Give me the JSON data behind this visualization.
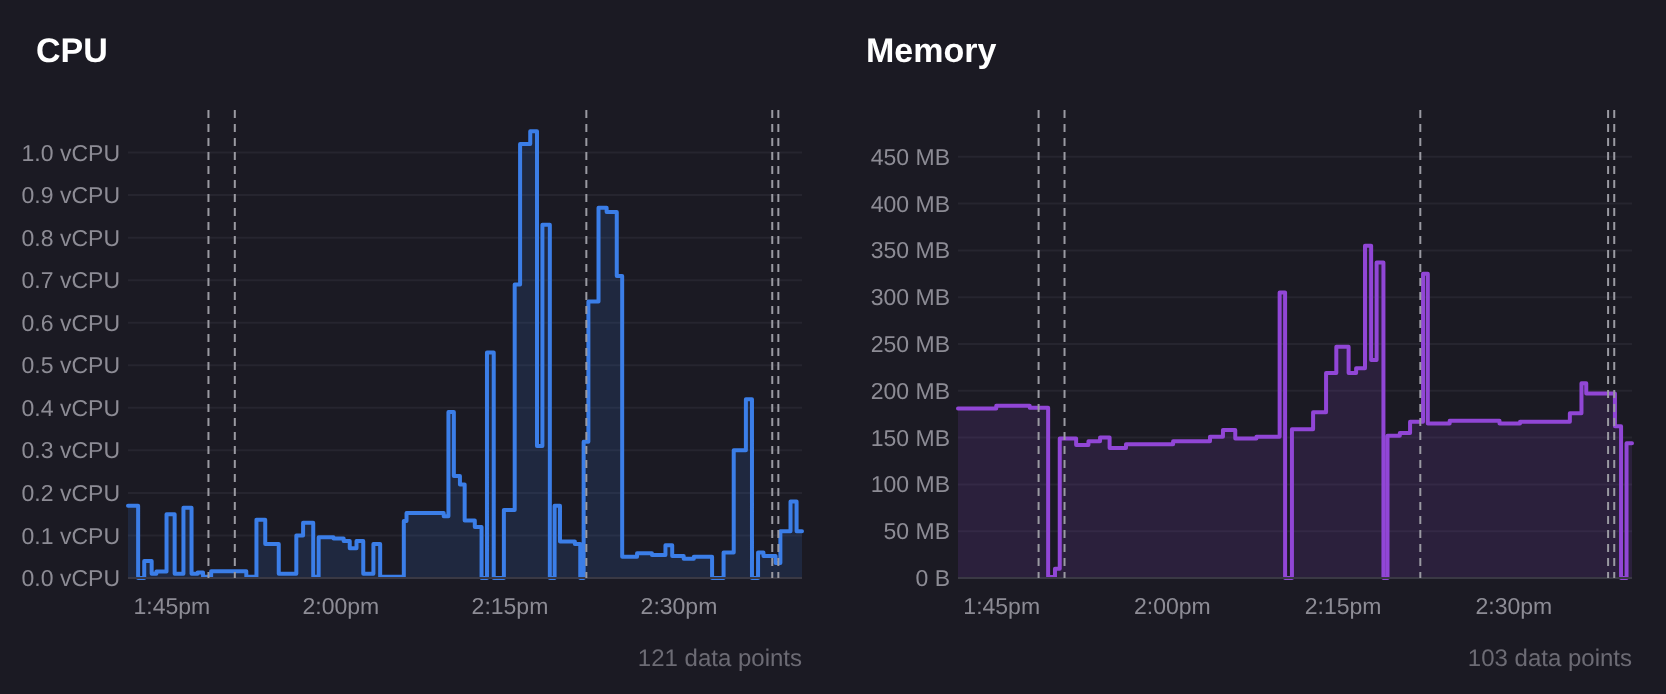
{
  "chart_data": [
    {
      "type": "step",
      "title": "CPU",
      "color": "#3b7ee8",
      "x": [
        13.685,
        13.7,
        13.709,
        13.72,
        13.727,
        13.742,
        13.754,
        13.767,
        13.779,
        13.788,
        13.796,
        13.808,
        13.86,
        13.875,
        13.888,
        13.908,
        13.934,
        13.944,
        13.959,
        13.967,
        13.989,
        14.004,
        14.013,
        14.023,
        14.033,
        14.048,
        14.058,
        14.093,
        14.097,
        14.152,
        14.159,
        14.167,
        14.176,
        14.183,
        14.198,
        14.208,
        14.216,
        14.226,
        14.241,
        14.257,
        14.265,
        14.28,
        14.29,
        14.298,
        14.309,
        14.316,
        14.324,
        14.346,
        14.354,
        14.359,
        14.366,
        14.381,
        14.393,
        14.408,
        14.416,
        14.438,
        14.46,
        14.48,
        14.49,
        14.507,
        14.522,
        14.549,
        14.566,
        14.581,
        14.599,
        14.608,
        14.617,
        14.625,
        14.643,
        14.65,
        14.665,
        14.674,
        14.682
      ],
      "values": [
        0.17,
        0,
        0.04,
        0.01,
        0.015,
        0.15,
        0.01,
        0.165,
        0.01,
        0.013,
        0.003,
        0.016,
        0.003,
        0.137,
        0.08,
        0.01,
        0.1,
        0.13,
        0.003,
        0.096,
        0.093,
        0.087,
        0.07,
        0.087,
        0.01,
        0.08,
        0.003,
        0.134,
        0.153,
        0.145,
        0.39,
        0.24,
        0.22,
        0.135,
        0.12,
        0,
        0.53,
        0,
        0.16,
        0.69,
        1.02,
        1.05,
        0.31,
        0.83,
        0,
        0.17,
        0.086,
        0.08,
        0,
        0.32,
        0.65,
        0.87,
        0.86,
        0.71,
        0.05,
        0.058,
        0.054,
        0.077,
        0.052,
        0.045,
        0.05,
        0,
        0.06,
        0.3,
        0.42,
        0,
        0.06,
        0.052,
        0.035,
        0.11,
        0.18,
        0.11,
        0.11
      ],
      "xlim": [
        13.685,
        14.682
      ],
      "ylim": [
        0,
        1.1
      ],
      "xticks": [
        {
          "value": 13.75,
          "label": "1:45pm"
        },
        {
          "value": 14.0,
          "label": "2:00pm"
        },
        {
          "value": 14.25,
          "label": "2:15pm"
        },
        {
          "value": 14.5,
          "label": "2:30pm"
        }
      ],
      "yticks": [
        {
          "value": 0,
          "label": "0.0 vCPU"
        },
        {
          "value": 0.1,
          "label": "0.1 vCPU"
        },
        {
          "value": 0.2,
          "label": "0.2 vCPU"
        },
        {
          "value": 0.3,
          "label": "0.3 vCPU"
        },
        {
          "value": 0.4,
          "label": "0.4 vCPU"
        },
        {
          "value": 0.5,
          "label": "0.5 vCPU"
        },
        {
          "value": 0.6,
          "label": "0.6 vCPU"
        },
        {
          "value": 0.7,
          "label": "0.7 vCPU"
        },
        {
          "value": 0.8,
          "label": "0.8 vCPU"
        },
        {
          "value": 0.9,
          "label": "0.9 vCPU"
        },
        {
          "value": 1.0,
          "label": "1.0 vCPU"
        }
      ],
      "grid": "y",
      "ref_lines": [
        {
          "axis": "x",
          "value": 13.804,
          "color": "#9a9aa2",
          "line_style": "dashed"
        },
        {
          "axis": "x",
          "value": 13.843,
          "color": "#9a9aa2",
          "line_style": "dashed"
        },
        {
          "axis": "x",
          "value": 14.363,
          "color": "#9a9aa2",
          "line_style": "dashed"
        },
        {
          "axis": "x",
          "value": 14.638,
          "color": "#9a9aa2",
          "line_style": "dashed"
        },
        {
          "axis": "x",
          "value": 14.647,
          "color": "#9a9aa2",
          "line_style": "dashed"
        }
      ],
      "annotations": [
        "121 data points"
      ]
    },
    {
      "type": "step",
      "title": "Memory",
      "color": "#9146d6",
      "x": [
        13.686,
        13.742,
        13.791,
        13.818,
        13.828,
        13.835,
        13.859,
        13.877,
        13.894,
        13.908,
        13.932,
        14.001,
        14.055,
        14.074,
        14.092,
        14.123,
        14.157,
        14.165,
        14.175,
        14.206,
        14.225,
        14.24,
        14.258,
        14.269,
        14.282,
        14.291,
        14.299,
        14.309,
        14.315,
        14.333,
        14.348,
        14.367,
        14.374,
        14.406,
        14.479,
        14.509,
        14.582,
        14.599,
        14.606,
        14.648,
        14.657,
        14.665,
        14.673
      ],
      "values": [
        181,
        184,
        182,
        1,
        10,
        149,
        142,
        146,
        150,
        139,
        143,
        146,
        151,
        158,
        149,
        151,
        305,
        0,
        159,
        177,
        219,
        247,
        219,
        224,
        355,
        233,
        337,
        0,
        152,
        155,
        167,
        325,
        165,
        168,
        165,
        167,
        176,
        208,
        197,
        162,
        0,
        144,
        144
      ],
      "xlim": [
        13.686,
        14.673
      ],
      "ylim": [
        0,
        500
      ],
      "xticks": [
        {
          "value": 13.75,
          "label": "1:45pm"
        },
        {
          "value": 14.0,
          "label": "2:00pm"
        },
        {
          "value": 14.25,
          "label": "2:15pm"
        },
        {
          "value": 14.5,
          "label": "2:30pm"
        }
      ],
      "yticks": [
        {
          "value": 0,
          "label": "0 B"
        },
        {
          "value": 50,
          "label": "50 MB"
        },
        {
          "value": 100,
          "label": "100 MB"
        },
        {
          "value": 150,
          "label": "150 MB"
        },
        {
          "value": 200,
          "label": "200 MB"
        },
        {
          "value": 250,
          "label": "250 MB"
        },
        {
          "value": 300,
          "label": "300 MB"
        },
        {
          "value": 350,
          "label": "350 MB"
        },
        {
          "value": 400,
          "label": "400 MB"
        },
        {
          "value": 450,
          "label": "450 MB"
        }
      ],
      "grid": "y",
      "ref_lines": [
        {
          "axis": "x",
          "value": 13.804,
          "color": "#9a9aa2",
          "line_style": "dashed"
        },
        {
          "axis": "x",
          "value": 13.842,
          "color": "#9a9aa2",
          "line_style": "dashed"
        },
        {
          "axis": "x",
          "value": 14.363,
          "color": "#9a9aa2",
          "line_style": "dashed"
        },
        {
          "axis": "x",
          "value": 14.638,
          "color": "#9a9aa2",
          "line_style": "dashed"
        },
        {
          "axis": "x",
          "value": 14.647,
          "color": "#9a9aa2",
          "line_style": "dashed"
        }
      ],
      "annotations": [
        "103 data points"
      ]
    }
  ]
}
